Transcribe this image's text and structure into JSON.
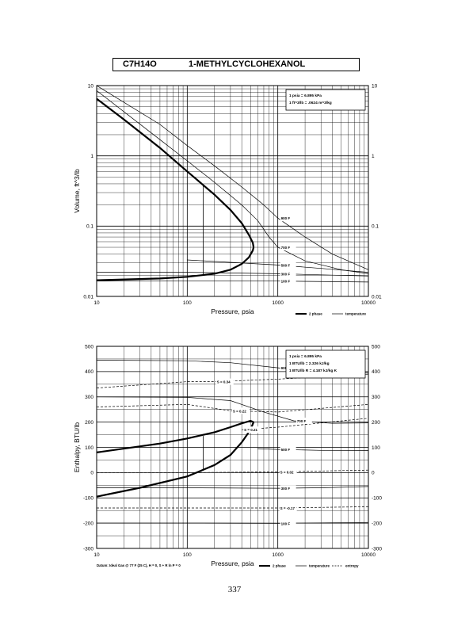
{
  "header": {
    "formula": "C7H14O",
    "name": "1-METHYLCYCLOHEXANOL"
  },
  "page_number": "337",
  "chart_data": [
    {
      "type": "line",
      "xscale": "log",
      "yscale": "log",
      "xlim": [
        10,
        10000
      ],
      "ylim": [
        0.01,
        10
      ],
      "xlabel": "Pressure,  psia",
      "ylabel": "Volume, ft^3/lb",
      "x_ticks": [
        "10",
        "100",
        "1000",
        "10000"
      ],
      "y_ticks": [
        "0.01",
        "0.1",
        "1",
        "10"
      ],
      "grid": true,
      "info_box": [
        "1 psia  =  6.895 kPa",
        "1 ft^3/lb  =  .0624 m^3/kg"
      ],
      "legend": [
        "2 phase",
        "temperature"
      ],
      "dome": {
        "liquid": [
          [
            10,
            0.017
          ],
          [
            50,
            0.018
          ],
          [
            100,
            0.019
          ],
          [
            200,
            0.021
          ],
          [
            300,
            0.024
          ],
          [
            400,
            0.029
          ],
          [
            480,
            0.036
          ],
          [
            530,
            0.045
          ],
          [
            540,
            0.05
          ]
        ],
        "vapor": [
          [
            10,
            6.5
          ],
          [
            20,
            3.3
          ],
          [
            50,
            1.3
          ],
          [
            100,
            0.6
          ],
          [
            200,
            0.28
          ],
          [
            300,
            0.17
          ],
          [
            400,
            0.11
          ],
          [
            480,
            0.075
          ],
          [
            530,
            0.058
          ],
          [
            540,
            0.05
          ]
        ],
        "tie_lines": [
          [
            10,
            0.017,
            6.5
          ],
          [
            150,
            0.02,
            0.4
          ]
        ]
      },
      "isotherms": [
        {
          "name": "900 F",
          "points": [
            [
              10,
              10
            ],
            [
              50,
              2.8
            ],
            [
              100,
              1.4
            ],
            [
              200,
              0.72
            ],
            [
              400,
              0.36
            ],
            [
              700,
              0.2
            ],
            [
              1000,
              0.13
            ],
            [
              2000,
              0.07
            ],
            [
              4000,
              0.04
            ],
            [
              10000,
              0.024
            ]
          ]
        },
        {
          "name": "700 F",
          "points": [
            [
              10,
              8.5
            ],
            [
              50,
              1.7
            ],
            [
              100,
              0.85
            ],
            [
              200,
              0.42
            ],
            [
              400,
              0.2
            ],
            [
              600,
              0.12
            ],
            [
              800,
              0.07
            ],
            [
              1000,
              0.05
            ],
            [
              2000,
              0.032
            ],
            [
              5000,
              0.024
            ],
            [
              10000,
              0.021
            ]
          ]
        },
        {
          "name": "500 F",
          "points": [
            [
              100,
              0.033
            ],
            [
              1000,
              0.028
            ],
            [
              3000,
              0.025
            ],
            [
              10000,
              0.022
            ]
          ]
        },
        {
          "name": "300 F",
          "points": [
            [
              10,
              0.022
            ],
            [
              100,
              0.022
            ],
            [
              1000,
              0.021
            ],
            [
              10000,
              0.0195
            ]
          ]
        },
        {
          "name": "100 F",
          "points": [
            [
              10,
              0.0165
            ],
            [
              1000,
              0.0165
            ],
            [
              10000,
              0.016
            ]
          ]
        }
      ]
    },
    {
      "type": "line",
      "xscale": "log",
      "xlim": [
        10,
        10000
      ],
      "ylim": [
        -300,
        500
      ],
      "xlabel": "Pressure,  psia",
      "ylabel": "Enthalpy, BTU/lb",
      "x_ticks": [
        "10",
        "100",
        "1000",
        "10000"
      ],
      "y_ticks": [
        "-300",
        "-200",
        "-100",
        "0",
        "100",
        "200",
        "300",
        "400",
        "500"
      ],
      "grid": true,
      "info_box": [
        "1 psia  =  6.895 kPa",
        "1 BTU/lb  =  2.326 kJ/kg",
        "1 BTU/lb R  =  4.187 kJ/kg K"
      ],
      "legend": [
        "2 phase",
        "temperature",
        "entropy"
      ],
      "footnote": "Datum: Ideal Gas @ 77 F (25 C),  H = 0,  S + R ln P = 0",
      "dome": {
        "vapor": [
          [
            10,
            80
          ],
          [
            50,
            115
          ],
          [
            100,
            135
          ],
          [
            200,
            160
          ],
          [
            300,
            180
          ],
          [
            400,
            195
          ],
          [
            500,
            205
          ],
          [
            540,
            200
          ]
        ],
        "liquid": [
          [
            10,
            -95
          ],
          [
            30,
            -60
          ],
          [
            100,
            -15
          ],
          [
            200,
            30
          ],
          [
            300,
            70
          ],
          [
            400,
            120
          ],
          [
            500,
            170
          ],
          [
            540,
            200
          ]
        ],
        "tie_lines": [
          [
            10,
            -95,
            80
          ],
          [
            150,
            15,
            145
          ]
        ]
      },
      "isotherms": [
        {
          "name": "900 F",
          "points": [
            [
              10,
              445
            ],
            [
              100,
              443
            ],
            [
              300,
              435
            ],
            [
              1000,
              415
            ],
            [
              3000,
              400
            ],
            [
              10000,
              395
            ]
          ]
        },
        {
          "name": "700 F",
          "points": [
            [
              10,
              300
            ],
            [
              100,
              298
            ],
            [
              300,
              285
            ],
            [
              700,
              240
            ],
            [
              1500,
              205
            ],
            [
              4000,
              195
            ],
            [
              10000,
              197
            ]
          ]
        },
        {
          "name": "500 F",
          "points": [
            [
              600,
              95
            ],
            [
              1000,
              92
            ],
            [
              3000,
              88
            ],
            [
              10000,
              87
            ]
          ]
        },
        {
          "name": "300 F",
          "points": [
            [
              10,
              -60
            ],
            [
              100,
              -60
            ],
            [
              1000,
              -62
            ],
            [
              3000,
              -60
            ],
            [
              10000,
              -55
            ]
          ]
        },
        {
          "name": "100 F",
          "points": [
            [
              10,
              -200
            ],
            [
              100,
              -200
            ],
            [
              1000,
              -201
            ],
            [
              10000,
              -197
            ]
          ]
        }
      ],
      "entropy_lines": [
        {
          "name": "S = 0.34",
          "points": [
            [
              10,
              335
            ],
            [
              100,
              360
            ],
            [
              200,
              360
            ],
            [
              1000,
              370
            ],
            [
              10000,
              390
            ]
          ]
        },
        {
          "name": "S = 0.22",
          "points": [
            [
              10,
              260
            ],
            [
              100,
              270
            ],
            [
              300,
              245
            ],
            [
              1000,
              240
            ],
            [
              10000,
              270
            ]
          ]
        },
        {
          "name": "S = 0.21",
          "points": [
            [
              400,
              170
            ],
            [
              1000,
              180
            ],
            [
              10000,
              215
            ]
          ]
        },
        {
          "name": "S = 0.02",
          "points": [
            [
              10,
              0
            ],
            [
              100,
              0
            ],
            [
              1000,
              3
            ],
            [
              10000,
              10
            ]
          ]
        },
        {
          "name": "S = -0.17",
          "points": [
            [
              10,
              -140
            ],
            [
              100,
              -140
            ],
            [
              1000,
              -140
            ],
            [
              10000,
              -135
            ]
          ]
        }
      ]
    }
  ],
  "colors": {
    "ink": "#000000",
    "paper": "#ffffff"
  }
}
